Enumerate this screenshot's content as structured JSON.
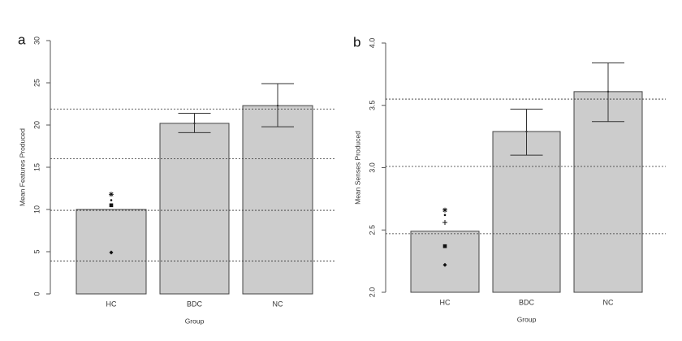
{
  "chart_data": [
    {
      "type": "bar",
      "panel_label": "a",
      "ylabel": "Mean Features Produced",
      "xlabel": "Group",
      "categories": [
        "HC",
        "BDC",
        "NC"
      ],
      "values": [
        10,
        20.2,
        22.3
      ],
      "error_low": [
        null,
        19.1,
        19.8
      ],
      "error_high": [
        null,
        21.4,
        24.9
      ],
      "markers": [
        {
          "value": 4.9,
          "shape": "diamond"
        },
        {
          "value": 10.5,
          "shape": "square"
        },
        {
          "value": 11.1,
          "shape": "dot"
        },
        {
          "value": 11.8,
          "shape": "asterisk"
        }
      ],
      "hlines": [
        3.9,
        9.9,
        16,
        21.9
      ],
      "color": "#cccccc",
      "ylim": [
        0,
        30
      ],
      "yticks": [
        0,
        5,
        10,
        15,
        20,
        25,
        30
      ]
    },
    {
      "type": "bar",
      "panel_label": "b",
      "ylabel": "Mean Senses Produced",
      "xlabel": "Group",
      "categories": [
        "HC",
        "BDC",
        "NC"
      ],
      "values": [
        2.49,
        3.29,
        3.61
      ],
      "error_low": [
        null,
        3.1,
        3.37
      ],
      "error_high": [
        null,
        3.47,
        3.84
      ],
      "markers": [
        {
          "value": 2.22,
          "shape": "diamond"
        },
        {
          "value": 2.37,
          "shape": "square"
        },
        {
          "value": 2.56,
          "shape": "plus"
        },
        {
          "value": 2.62,
          "shape": "dot"
        },
        {
          "value": 2.66,
          "shape": "asterisk"
        }
      ],
      "hlines": [
        2.47,
        3.01,
        3.55
      ],
      "color": "#cccccc",
      "ylim": [
        2,
        4
      ],
      "yticks": [
        {
          "value": 2,
          "label": "2.0"
        },
        2.5,
        {
          "value": 3,
          "label": "3.0"
        },
        3.5,
        {
          "value": 4,
          "label": "4.0"
        }
      ]
    }
  ]
}
